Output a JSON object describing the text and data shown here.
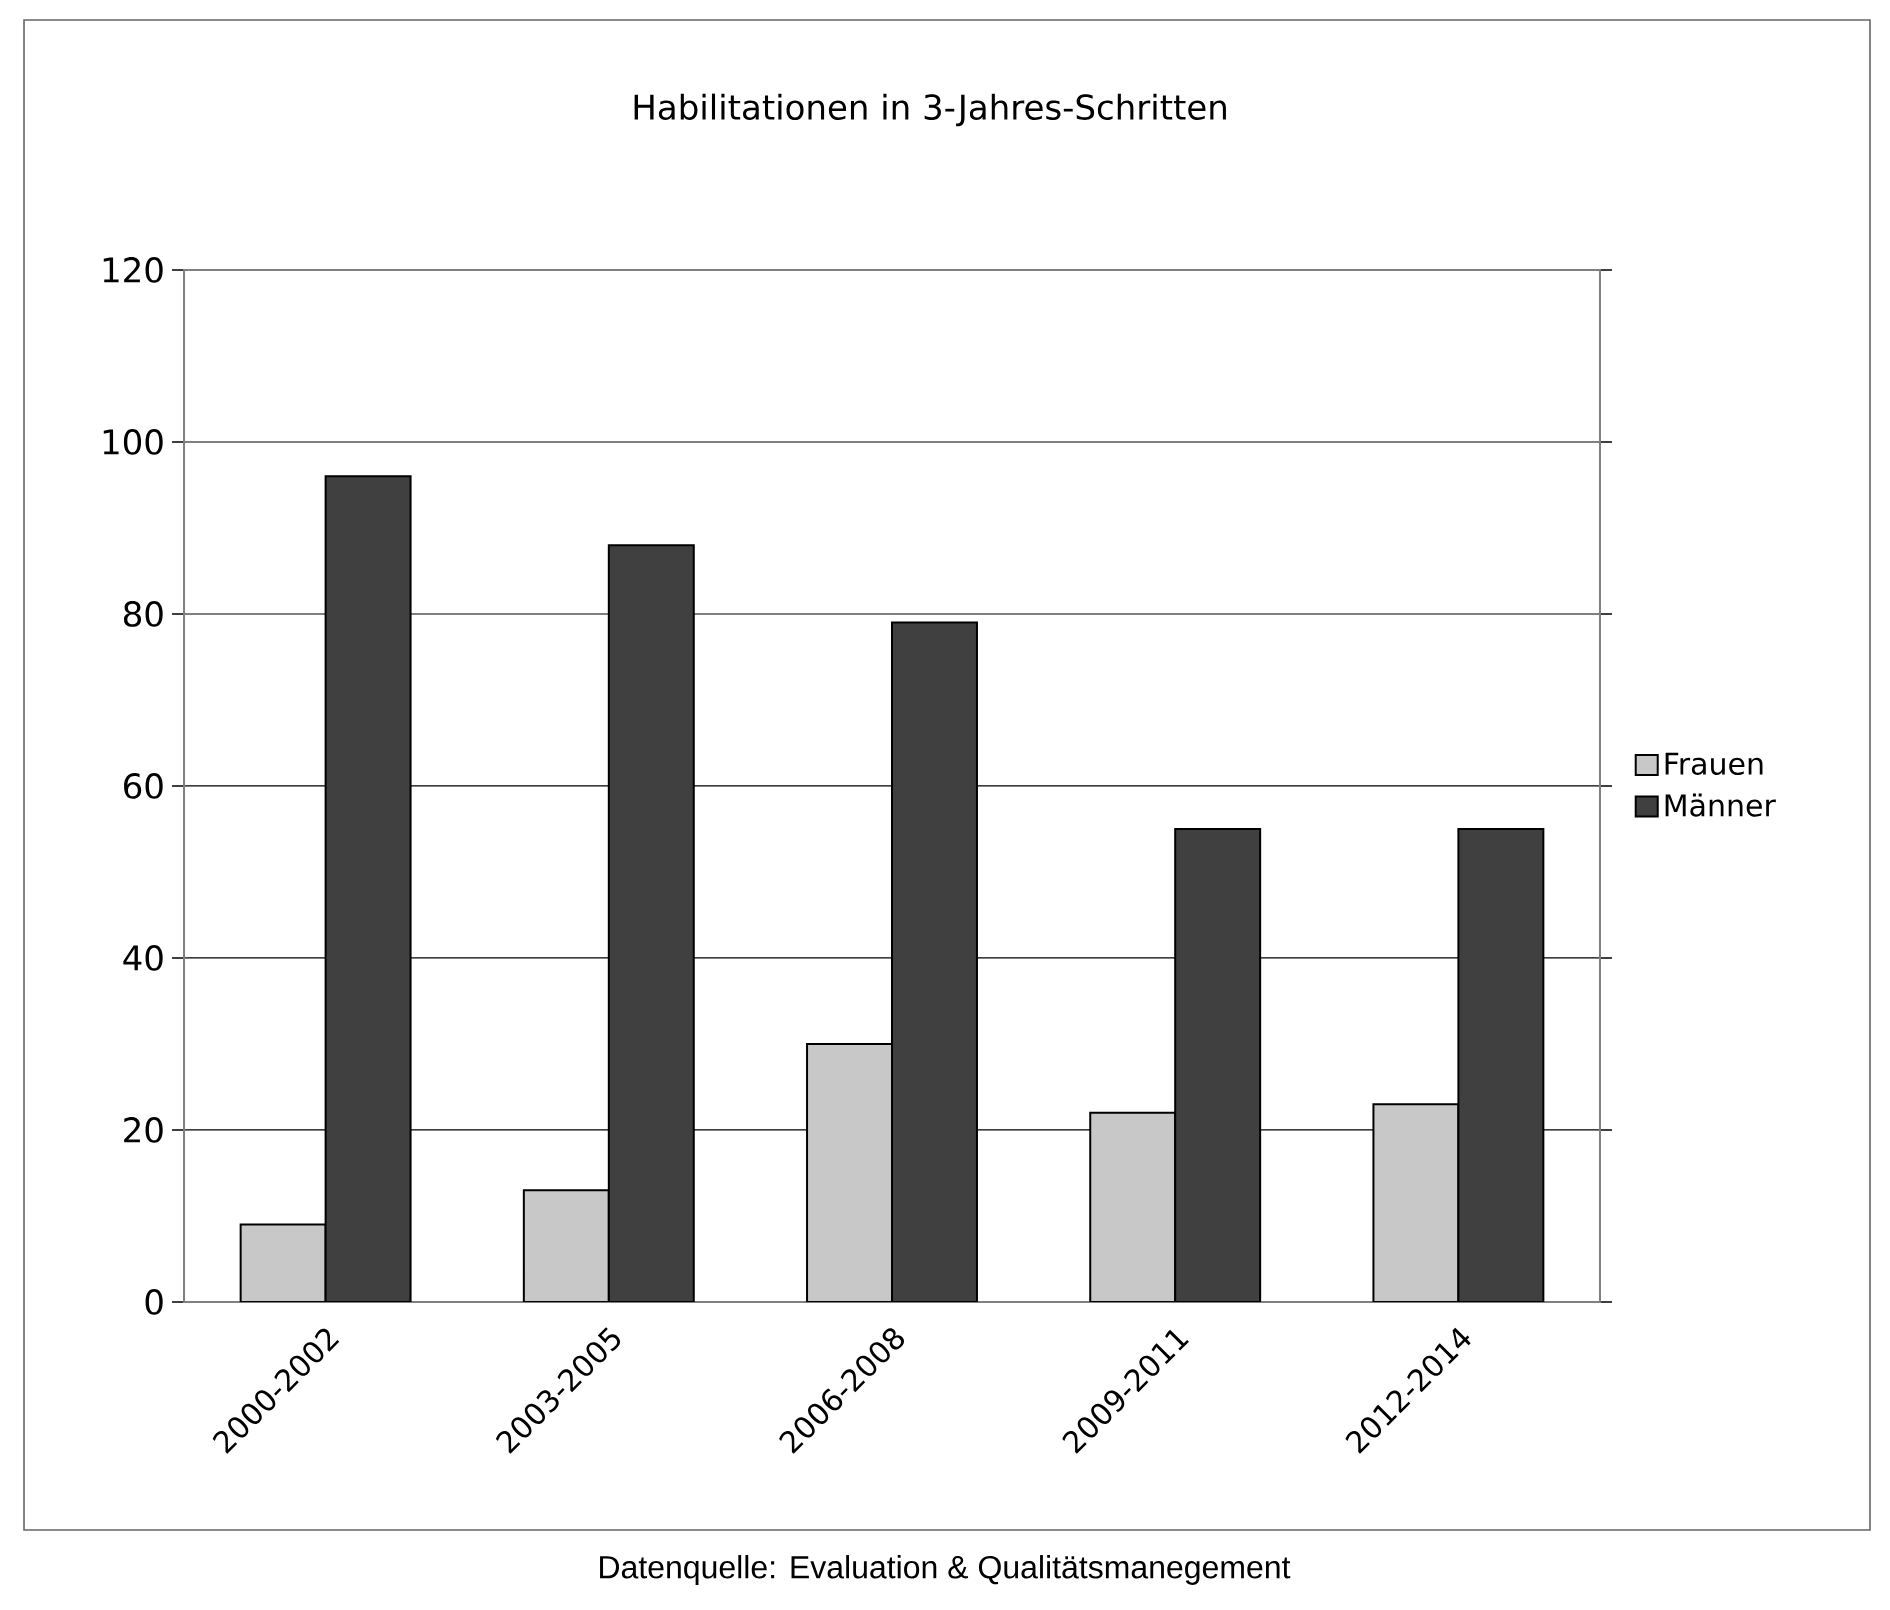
{
  "chart_data": {
    "type": "bar",
    "title": "Habilitationen in 3-Jahres-Schritten",
    "categories": [
      "2000-2002",
      "2003-2005",
      "2006-2008",
      "2009-2011",
      "2012-2014"
    ],
    "series": [
      {
        "name": "Frauen",
        "color": "#c8c8c8",
        "values": [
          9,
          13,
          30,
          22,
          23
        ]
      },
      {
        "name": "Männer",
        "color": "#404040",
        "values": [
          96,
          88,
          79,
          55,
          55
        ]
      }
    ],
    "ylim": [
      0,
      120
    ],
    "yticks": [
      0,
      20,
      40,
      60,
      80,
      100,
      120
    ],
    "grid": "y",
    "legend": "right",
    "annotations": [
      "Datenquelle: Evaluation & Qualitätsmanegement"
    ]
  }
}
